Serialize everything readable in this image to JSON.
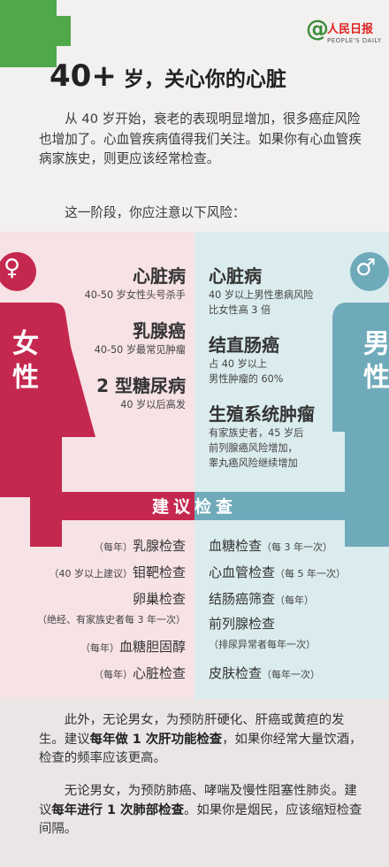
{
  "header": {
    "title_big": "40+",
    "title_rest": " 岁，关心你的心脏",
    "logo_at": "@",
    "logo_name": "人民日报",
    "logo_sub": "PEOPLE'S DAILY",
    "intro_1": "从 40 岁开始，衰老的表现明显增加，很多癌症风险也增加了。心血管疾病值得我们关注。如果你有心血管疾病家族史，则更应该经常检查。",
    "intro_2": "这一阶段，你应注意以下风险："
  },
  "female": {
    "symbol": "♀",
    "label": "女性",
    "risks": [
      {
        "title": "心脏病",
        "desc": "40-50 岁女性头号杀手"
      },
      {
        "title": "乳腺癌",
        "desc": "40-50 岁最常见肿瘤"
      },
      {
        "title": "2 型糖尿病",
        "desc": "40 岁以后高发"
      }
    ],
    "checks": [
      {
        "note": "（每年）",
        "name": "乳腺检查"
      },
      {
        "note": "（40 岁以上建议）",
        "name": "钼靶检查"
      },
      {
        "note": "",
        "name": "卵巢检查"
      },
      {
        "note": "（绝经、有家族史者每 3 年一次）",
        "name": ""
      },
      {
        "note": "（每年）",
        "name": "血糖胆固醇"
      },
      {
        "note": "（每年）",
        "name": "心脏检查"
      }
    ]
  },
  "male": {
    "symbol": "♂",
    "label": "男性",
    "risks": [
      {
        "title": "心脏病",
        "desc": "40 岁以上男性患病风险",
        "desc2": "比女性高 3 倍"
      },
      {
        "title": "结直肠癌",
        "desc": "占 40 岁以上",
        "desc2": "男性肿瘤的 60%"
      },
      {
        "title": "生殖系统肿瘤",
        "desc": "有家族史者，45 岁后",
        "desc2": "前列腺癌风险增加，",
        "desc3": "睾丸癌风险继续增加"
      }
    ],
    "checks": [
      {
        "name": "血糖检查",
        "note": "（每 3 年一次）"
      },
      {
        "name": "心血管检查",
        "note": "（每 5 年一次）"
      },
      {
        "name": "结肠癌筛查",
        "note": "（每年）"
      },
      {
        "name": "前列腺检查",
        "note": ""
      },
      {
        "name": "",
        "note": "（排尿异常者每年一次）"
      },
      {
        "name": "皮肤检查",
        "note": "（每年一次）"
      }
    ]
  },
  "banner": "建议检查",
  "footer": {
    "p1_a": "此外，无论男女，为预防肝硬化、肝癌或黄疸的发生。建议",
    "p1_b": "每年做 1 次肝功能检查",
    "p1_c": "，如果你经常大量饮酒，检查的频率应该更高。",
    "p2_a": "无论男女，为预防肺癌、哮喘及慢性阻塞性肺炎。建议",
    "p2_b": "每年进行 1 次肺部检查",
    "p2_c": "。如果你是烟民，应该缩短检查间隔。"
  },
  "colors": {
    "green": "#4fa84a",
    "female": "#c5284f",
    "male": "#6faaba"
  }
}
